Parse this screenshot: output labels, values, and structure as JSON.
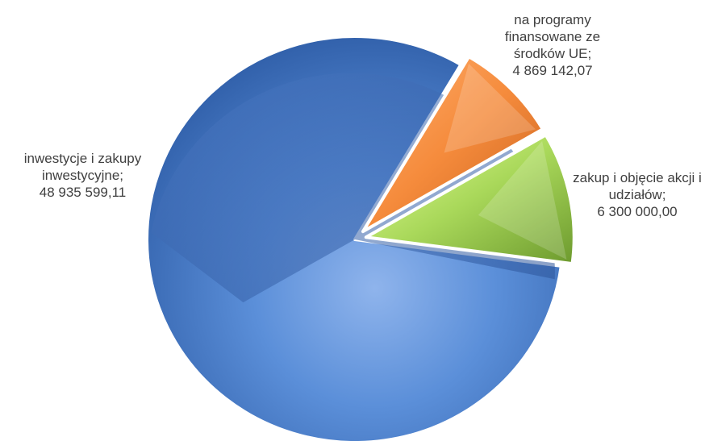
{
  "chart_data": {
    "type": "pie",
    "title": "",
    "series": [
      {
        "values": [
          48935599.11,
          4869142.07,
          6300000.0
        ],
        "labels": [
          [
            "inwestycje  i zakupy",
            "inwestycyjne;",
            "48 935 599,11"
          ],
          [
            "na programy",
            "finansowane  ze",
            "środków  UE;",
            "4 869 142,07"
          ],
          [
            "zakup  i objęcie akcji i",
            "udziałów;",
            "6 300 000,00"
          ]
        ]
      }
    ],
    "categories": [
      "inwestycje  i zakupy inwestycyjne",
      "na programy finansowane  ze środków  UE",
      "zakup  i objęcie akcji i udziałów"
    ],
    "colors": [
      "#4f81bd",
      "#f79646",
      "#9bbb59"
    ],
    "legend": "none"
  }
}
